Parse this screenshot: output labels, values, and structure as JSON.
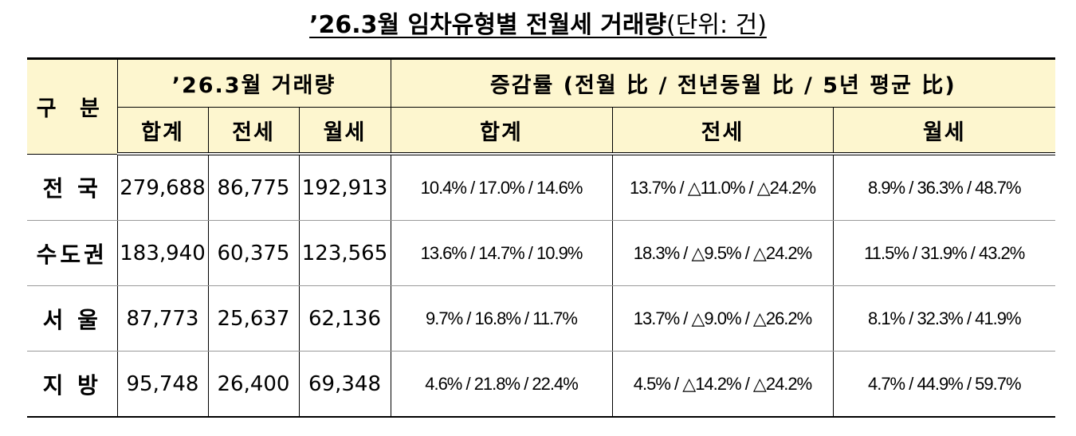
{
  "title": {
    "main": "’26.3월 임차유형별 전월세 거래량",
    "unit": "(단위: 건)"
  },
  "header": {
    "category": "구 분",
    "volume_group": "’26.3월 거래량",
    "rate_group": "증감률 (전월 比 / 전년동월 比 / 5년 평균 比)",
    "volume_cols": [
      "합계",
      "전세",
      "월세"
    ],
    "rate_cols": [
      "합계",
      "전세",
      "월세"
    ]
  },
  "rows": [
    {
      "region": "전 국",
      "total": "279,688",
      "jeonse": "86,775",
      "wolse": "192,913",
      "rate_total": "10.4% / 17.0% / 14.6%",
      "rate_jeonse": "13.7% / △11.0% / △24.2%",
      "rate_wolse": "8.9% / 36.3% / 48.7%"
    },
    {
      "region": "수도권",
      "total": "183,940",
      "jeonse": "60,375",
      "wolse": "123,565",
      "rate_total": "13.6% / 14.7% / 10.9%",
      "rate_jeonse": "18.3% / △9.5% / △24.2%",
      "rate_wolse": "11.5% / 31.9% / 43.2%"
    },
    {
      "region": "서 울",
      "total": "87,773",
      "jeonse": "25,637",
      "wolse": "62,136",
      "rate_total": "9.7% / 16.8% / 11.7%",
      "rate_jeonse": "13.7% / △9.0% / △26.2%",
      "rate_wolse": "8.1% / 32.3% / 41.9%"
    },
    {
      "region": "지 방",
      "total": "95,748",
      "jeonse": "26,400",
      "wolse": "69,348",
      "rate_total": "4.6% / 21.8% / 22.4%",
      "rate_jeonse": "4.5% / △14.2% / △24.2%",
      "rate_wolse": "4.7% / 44.9% / 59.7%"
    }
  ],
  "colors": {
    "header_bg": "#fdf6cf",
    "border": "#000000",
    "row_divider": "#999999"
  }
}
